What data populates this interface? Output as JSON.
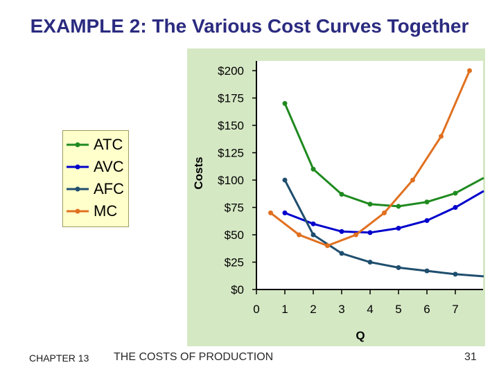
{
  "slide": {
    "title": "EXAMPLE 2:  The Various Cost Curves Together",
    "footer_chapter": "CHAPTER 13",
    "footer_topic": "THE COSTS OF PRODUCTION",
    "page_number": "31"
  },
  "chart_data": {
    "type": "line",
    "title": "",
    "xlabel": "Q",
    "ylabel": "Costs",
    "xlim": [
      0,
      7
    ],
    "ylim": [
      0,
      200
    ],
    "x_ticks": [
      "0",
      "1",
      "2",
      "3",
      "4",
      "5",
      "6",
      "7"
    ],
    "y_ticks": [
      "$0",
      "$25",
      "$50",
      "$75",
      "$100",
      "$125",
      "$150",
      "$175",
      "$200"
    ],
    "y_tick_values": [
      0,
      25,
      50,
      75,
      100,
      125,
      150,
      175,
      200
    ],
    "grid": false,
    "legend_position": "left",
    "series": [
      {
        "name": "ATC",
        "color": "#1f8a1f",
        "x": [
          1,
          2,
          3,
          4,
          5,
          6,
          7,
          8
        ],
        "y": [
          170,
          110,
          87,
          78,
          76,
          80,
          88,
          102
        ]
      },
      {
        "name": "AVC",
        "color": "#0000cc",
        "x": [
          1,
          2,
          3,
          4,
          5,
          6,
          7,
          8
        ],
        "y": [
          70,
          60,
          53,
          52,
          56,
          63,
          75,
          90
        ]
      },
      {
        "name": "AFC",
        "color": "#1f4e6e",
        "x": [
          1,
          2,
          3,
          4,
          5,
          6,
          7,
          8
        ],
        "y": [
          100,
          50,
          33,
          25,
          20,
          17,
          14,
          12
        ]
      },
      {
        "name": "MC",
        "color": "#e07020",
        "x": [
          0.5,
          1.5,
          2.5,
          3.5,
          4.5,
          5.5,
          6.5,
          7.5
        ],
        "y": [
          70,
          50,
          40,
          50,
          70,
          100,
          140,
          200
        ]
      }
    ]
  }
}
